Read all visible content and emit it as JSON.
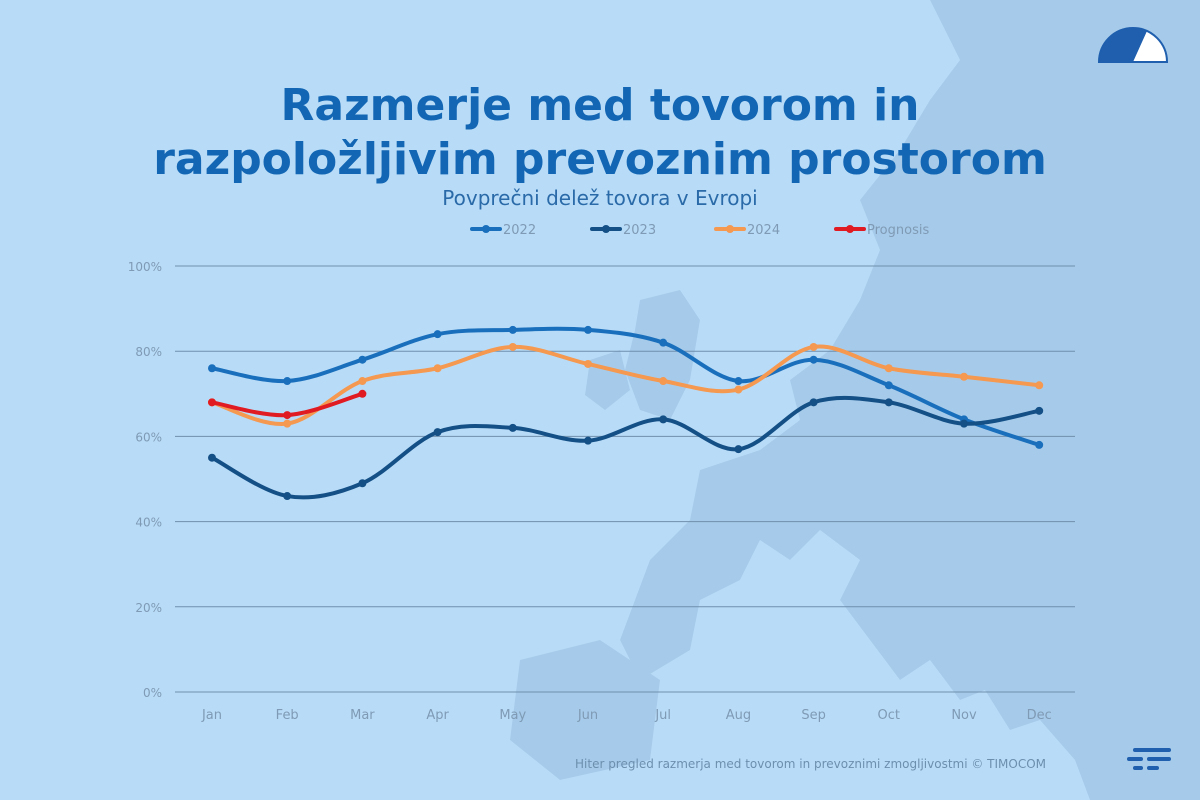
{
  "title_line1": "Razmerje med tovorom in",
  "title_line2": "razpoložljivim prevoznim prostorom",
  "subtitle": "Povprečni delež tovora v Evropi",
  "footer": "Hiter pregled razmerja med tovorom in prevoznimi zmogljivostmi © TIMOCOM",
  "colors": {
    "background": "#b8dcf8",
    "map": "#a6cbea",
    "grid": "#6f8fad",
    "axis_text": "#7f9ab4",
    "title": "#1366b3"
  },
  "icons": [
    "gauge-icon",
    "timocom-logo-icon"
  ],
  "chart_data": {
    "type": "line",
    "categories": [
      "Jan",
      "Feb",
      "Mar",
      "Apr",
      "May",
      "Jun",
      "Jul",
      "Aug",
      "Sep",
      "Oct",
      "Nov",
      "Dec"
    ],
    "ylim": [
      0,
      100
    ],
    "yticks": [
      0,
      20,
      40,
      60,
      80,
      100
    ],
    "ytick_labels": [
      "0%",
      "20%",
      "40%",
      "60%",
      "80%",
      "100%"
    ],
    "grid": true,
    "legend_position": "top-center",
    "series": [
      {
        "name": "2022",
        "color": "#1a6fbc",
        "values": [
          76,
          73,
          78,
          84,
          85,
          85,
          82,
          73,
          78,
          72,
          64,
          58
        ]
      },
      {
        "name": "2023",
        "color": "#144f86",
        "values": [
          55,
          46,
          49,
          61,
          62,
          59,
          64,
          57,
          68,
          68,
          63,
          66
        ]
      },
      {
        "name": "2024",
        "color": "#f59850",
        "values": [
          68,
          63,
          73,
          76,
          81,
          77,
          73,
          71,
          81,
          76,
          74,
          72
        ]
      },
      {
        "name": "Prognosis",
        "color": "#e11b22",
        "values": [
          68,
          65,
          70,
          null,
          null,
          null,
          null,
          null,
          null,
          null,
          null,
          null
        ]
      }
    ]
  }
}
